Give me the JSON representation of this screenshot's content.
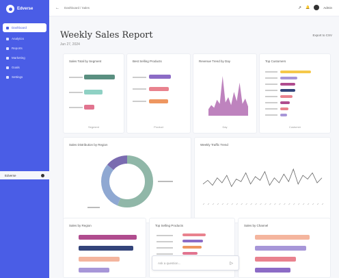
{
  "sidebar": {
    "brand": "Edverse",
    "items": [
      {
        "label": "Dashboard",
        "active": true
      },
      {
        "label": "Analytics",
        "active": false
      },
      {
        "label": "Reports",
        "active": false
      },
      {
        "label": "Marketing",
        "active": false
      },
      {
        "label": "Goals",
        "active": false
      },
      {
        "label": "Settings",
        "active": false
      }
    ],
    "user": {
      "name": "Edverse"
    }
  },
  "topbar": {
    "back": "←",
    "breadcrumb": "Dashboard / Sales",
    "share": "↗",
    "bell": "🔔",
    "user_name": "Admin"
  },
  "page": {
    "title": "Weekly Sales Report",
    "subtitle": "Jun 27, 2024",
    "export_label": "Export to CSV"
  },
  "cards": {
    "c1": {
      "title": "Sales Total by Segment",
      "footer": "Segment"
    },
    "c2": {
      "title": "Best Selling Products",
      "footer": "Product"
    },
    "c3": {
      "title": "Revenue Trend by Day",
      "footer": "Day"
    },
    "c4": {
      "title": "Top Customers",
      "footer": "Customer"
    },
    "c5": {
      "title": "Sales Distribution by Region"
    },
    "c6": {
      "title": "Weekly Traffic Trend"
    },
    "c7": {
      "title": "Sales by Region"
    },
    "c8": {
      "title": "Top Selling Products"
    },
    "c9": {
      "title": "Sales by Channel"
    }
  },
  "colors": {
    "sidebar": "#4a5de6",
    "green": "#5a8f80",
    "teal": "#8fd1c4",
    "pink": "#e1748f",
    "purple": "#8c6bc6",
    "salmon": "#e9828e",
    "orange": "#ee9660",
    "magenta": "#a85aa8",
    "gold": "#f5c84a",
    "plum": "#b04c8e",
    "navy": "#33447a",
    "peach": "#f4b59e",
    "lavender": "#a796d8",
    "donut_green": "#90b7a8",
    "donut_blue": "#8fa8d2",
    "donut_purple": "#7a6bb0"
  },
  "search": {
    "placeholder": "Ask a question..."
  },
  "chart_data": [
    {
      "type": "bar",
      "title": "Sales Total by Segment",
      "series": [
        {
          "values": [
            45,
            27,
            15
          ]
        }
      ]
    },
    {
      "type": "bar",
      "title": "Best Selling Products",
      "series": [
        {
          "values": [
            32,
            29,
            28
          ]
        }
      ]
    },
    {
      "type": "area",
      "title": "Revenue Trend by Day",
      "series": [
        {
          "values": [
            5,
            8,
            6,
            12,
            9,
            30,
            10,
            14,
            8,
            18,
            11,
            25,
            9,
            13,
            7
          ]
        }
      ]
    },
    {
      "type": "bar",
      "title": "Top Customers",
      "series": [
        {
          "values": [
            45,
            25,
            22,
            22,
            18,
            14,
            12,
            10
          ]
        }
      ]
    },
    {
      "type": "pie",
      "title": "Sales Distribution by Region",
      "series": [
        {
          "values": [
            56,
            30,
            14
          ]
        }
      ]
    },
    {
      "type": "line",
      "title": "Weekly Traffic Trend",
      "series": [
        {
          "values": [
            20,
            26,
            18,
            30,
            22,
            34,
            16,
            28,
            24,
            38,
            20,
            32,
            26,
            40,
            18,
            30,
            22,
            36,
            24,
            44,
            20,
            34,
            28,
            38,
            22,
            30
          ]
        }
      ]
    },
    {
      "type": "bar",
      "title": "Sales by Region",
      "series": [
        {
          "values": [
            85,
            80,
            60,
            45
          ]
        }
      ]
    },
    {
      "type": "bar",
      "title": "Top Selling Products",
      "series": [
        {
          "values": [
            34,
            30,
            28,
            22
          ]
        }
      ]
    },
    {
      "type": "bar",
      "title": "Sales by Channel",
      "series": [
        {
          "values": [
            80,
            75,
            60,
            52
          ]
        }
      ]
    }
  ]
}
